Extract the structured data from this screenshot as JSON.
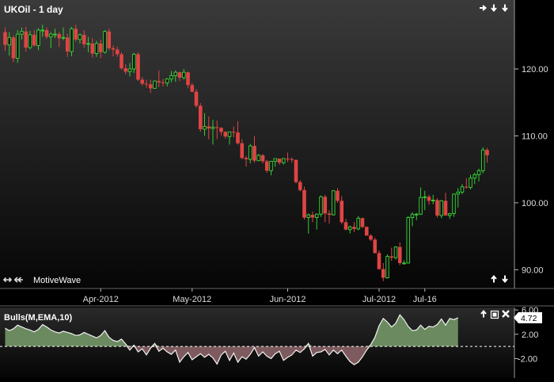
{
  "price_panel": {
    "title": "UKOil - 1 day",
    "watermark": "MotiveWave",
    "nav_top_icons": [
      "arrow-right-icon",
      "arrow-down-icon",
      "arrow-down-icon"
    ],
    "nav_left_icons": [
      "double-arrow-icon",
      "double-arrow-icon"
    ],
    "nav_bottom_icons": [
      "arrow-up-icon",
      "arrow-down-icon"
    ]
  },
  "indicator_panel": {
    "title": "Bulls(M,EMA,10)",
    "current_value_label": "4.72",
    "icons": [
      "arrow-up-icon",
      "maximize-icon",
      "close-icon"
    ]
  },
  "colors": {
    "bull": "#33cc33",
    "bear": "#e04444",
    "axis_text": "#dddddd",
    "background_top": "#3a3a3a",
    "background_bottom": "#050505",
    "fill_positive": "#6b8a60",
    "fill_negative": "#7d5a5e"
  },
  "chart_data": [
    {
      "type": "candlestick",
      "title": "UKOil - 1 day",
      "ylim": [
        87.2,
        130.3
      ],
      "price_ticks": [
        "120.00",
        "110.00",
        "100.00",
        "90.00"
      ],
      "price_tick_values": [
        120,
        110,
        100,
        90
      ],
      "x_ticks": [
        "Apr-2012",
        "May-2012",
        "Jun-2012",
        "Jul-2012",
        "Jul-16"
      ],
      "x_tick_bar_index": [
        23,
        45,
        68,
        90,
        101
      ],
      "grid": false,
      "ohlc": [
        [
          125.5,
          126.2,
          122.7,
          123.6
        ],
        [
          123.6,
          125.5,
          122.0,
          124.7
        ],
        [
          124.7,
          125.0,
          121.0,
          121.6
        ],
        [
          121.6,
          125.8,
          120.9,
          125.2
        ],
        [
          125.2,
          126.2,
          124.4,
          125.6
        ],
        [
          125.6,
          126.3,
          122.6,
          123.2
        ],
        [
          123.2,
          125.7,
          122.9,
          125.1
        ],
        [
          125.1,
          125.8,
          123.4,
          123.5
        ],
        [
          123.5,
          126.1,
          122.8,
          125.8
        ],
        [
          125.8,
          126.6,
          124.8,
          125.8
        ],
        [
          125.8,
          126.2,
          124.5,
          124.8
        ],
        [
          124.8,
          125.5,
          123.1,
          125.2
        ],
        [
          125.2,
          126.0,
          124.6,
          125.2
        ],
        [
          125.2,
          125.5,
          123.3,
          124.6
        ],
        [
          124.6,
          126.2,
          124.3,
          124.7
        ],
        [
          124.7,
          125.3,
          121.8,
          122.6
        ],
        [
          122.6,
          126.3,
          121.9,
          126.0
        ],
        [
          126.0,
          126.6,
          124.1,
          124.4
        ],
        [
          124.4,
          125.3,
          123.8,
          125.1
        ],
        [
          125.1,
          125.8,
          123.2,
          123.7
        ],
        [
          123.7,
          124.8,
          122.5,
          123.8
        ],
        [
          123.8,
          124.6,
          121.7,
          122.3
        ],
        [
          122.3,
          124.2,
          121.8,
          123.8
        ],
        [
          123.8,
          124.4,
          121.6,
          122.5
        ],
        [
          122.5,
          125.8,
          122.3,
          125.6
        ],
        [
          125.6,
          126.0,
          122.8,
          123.1
        ],
        [
          123.1,
          123.5,
          121.9,
          122.9
        ],
        [
          122.9,
          123.3,
          121.8,
          122.2
        ],
        [
          122.2,
          122.5,
          119.9,
          120.1
        ],
        [
          120.1,
          120.7,
          119.2,
          119.6
        ],
        [
          119.6,
          120.9,
          118.9,
          120.0
        ],
        [
          120.0,
          122.4,
          119.4,
          122.2
        ],
        [
          122.2,
          122.5,
          118.2,
          118.4
        ],
        [
          118.4,
          118.8,
          117.5,
          117.8
        ],
        [
          117.8,
          118.4,
          117.2,
          117.7
        ],
        [
          117.7,
          118.4,
          116.4,
          117.1
        ],
        [
          117.1,
          118.3,
          117.1,
          118.2
        ],
        [
          118.2,
          119.8,
          117.3,
          118.0
        ],
        [
          118.0,
          118.5,
          117.4,
          117.9
        ],
        [
          117.9,
          118.6,
          117.4,
          118.5
        ],
        [
          118.5,
          119.7,
          118.0,
          119.0
        ],
        [
          119.0,
          119.8,
          118.1,
          119.5
        ],
        [
          119.5,
          119.6,
          118.2,
          118.7
        ],
        [
          118.7,
          120.0,
          118.4,
          119.5
        ],
        [
          119.5,
          119.6,
          117.1,
          117.6
        ],
        [
          117.6,
          117.9,
          116.5,
          116.6
        ],
        [
          116.6,
          117.0,
          114.2,
          114.5
        ],
        [
          114.5,
          114.9,
          110.6,
          111.0
        ],
        [
          111.0,
          113.4,
          110.0,
          111.4
        ],
        [
          111.4,
          112.9,
          109.5,
          111.1
        ],
        [
          111.1,
          112.4,
          108.7,
          111.3
        ],
        [
          111.3,
          112.3,
          109.5,
          111.2
        ],
        [
          111.2,
          111.3,
          110.1,
          110.6
        ],
        [
          110.6,
          110.7,
          109.6,
          109.9
        ],
        [
          109.9,
          110.4,
          108.7,
          110.6
        ],
        [
          110.6,
          111.4,
          109.8,
          110.5
        ],
        [
          110.5,
          112.2,
          108.7,
          108.9
        ],
        [
          108.9,
          109.5,
          106.5,
          106.7
        ],
        [
          106.7,
          107.0,
          105.4,
          106.5
        ],
        [
          106.5,
          108.8,
          105.9,
          108.5
        ],
        [
          108.5,
          110.0,
          106.0,
          106.3
        ],
        [
          106.3,
          107.3,
          106.2,
          107.1
        ],
        [
          107.1,
          107.3,
          105.9,
          106.2
        ],
        [
          106.2,
          106.4,
          104.5,
          104.8
        ],
        [
          104.8,
          106.2,
          104.1,
          106.2
        ],
        [
          106.2,
          106.6,
          105.4,
          106.6
        ],
        [
          106.6,
          106.6,
          105.7,
          106.0
        ],
        [
          106.0,
          106.7,
          105.7,
          106.6
        ],
        [
          106.6,
          107.5,
          106.1,
          106.5
        ],
        [
          106.5,
          106.8,
          106.0,
          106.4
        ],
        [
          106.4,
          106.5,
          102.9,
          103.1
        ],
        [
          103.1,
          103.4,
          101.7,
          101.9
        ],
        [
          101.9,
          102.4,
          97.5,
          97.8
        ],
        [
          97.8,
          98.4,
          95.4,
          98.2
        ],
        [
          98.2,
          98.7,
          97.1,
          97.8
        ],
        [
          97.8,
          98.4,
          96.0,
          98.3
        ],
        [
          98.3,
          101.1,
          97.9,
          100.9
        ],
        [
          100.9,
          101.2,
          97.1,
          98.4
        ],
        [
          98.4,
          98.9,
          96.9,
          98.2
        ],
        [
          98.2,
          101.9,
          98.1,
          101.8
        ],
        [
          101.8,
          102.2,
          100.0,
          100.3
        ],
        [
          100.3,
          101.0,
          96.8,
          97.1
        ],
        [
          97.1,
          97.6,
          95.9,
          96.0
        ],
        [
          96.0,
          96.6,
          95.4,
          96.4
        ],
        [
          96.4,
          97.1,
          95.6,
          96.1
        ],
        [
          96.1,
          98.0,
          95.9,
          97.7
        ],
        [
          97.7,
          97.8,
          96.2,
          96.4
        ],
        [
          96.4,
          96.5,
          95.1,
          95.1
        ],
        [
          95.1,
          95.3,
          94.3,
          94.5
        ],
        [
          94.5,
          94.8,
          92.4,
          92.5
        ],
        [
          92.5,
          92.9,
          90.0,
          90.1
        ],
        [
          90.1,
          91.0,
          88.3,
          88.8
        ],
        [
          88.8,
          92.3,
          88.7,
          92.0
        ],
        [
          92.0,
          93.3,
          91.3,
          91.8
        ],
        [
          91.8,
          93.5,
          91.5,
          93.4
        ],
        [
          93.4,
          94.1,
          90.7,
          91.0
        ],
        [
          91.0,
          91.4,
          90.8,
          91.0
        ],
        [
          91.0,
          98.0,
          91.0,
          97.8
        ],
        [
          97.8,
          98.6,
          96.5,
          98.3
        ],
        [
          98.3,
          98.5,
          97.4,
          98.3
        ],
        [
          98.3,
          102.3,
          98.2,
          100.8
        ],
        [
          100.8,
          101.8,
          98.9,
          100.9
        ],
        [
          100.9,
          101.2,
          99.7,
          100.3
        ],
        [
          100.3,
          101.2,
          99.8,
          100.4
        ],
        [
          100.4,
          100.7,
          97.8,
          98.1
        ],
        [
          98.1,
          100.4,
          97.7,
          100.3
        ],
        [
          100.3,
          101.5,
          98.2,
          98.1
        ],
        [
          98.1,
          98.4,
          97.6,
          98.4
        ],
        [
          98.4,
          101.4,
          97.9,
          101.3
        ],
        [
          101.3,
          102.2,
          99.3,
          101.6
        ],
        [
          101.6,
          102.8,
          101.3,
          102.4
        ],
        [
          102.4,
          103.7,
          102.1,
          102.3
        ],
        [
          102.3,
          104.2,
          102.0,
          103.7
        ],
        [
          103.7,
          104.5,
          102.8,
          104.2
        ],
        [
          104.2,
          105.1,
          103.2,
          104.8
        ],
        [
          104.8,
          108.3,
          104.4,
          107.9
        ],
        [
          107.9,
          108.2,
          106.0,
          107.1
        ]
      ]
    },
    {
      "type": "area",
      "title": "Bulls(M,EMA,10)",
      "ylim": [
        -5.2,
        6.4
      ],
      "y_ticks": [
        "6.00",
        "2.00",
        "-2.00"
      ],
      "y_tick_values": [
        6,
        2,
        -2
      ],
      "zero_line": 0,
      "last_value": 4.72,
      "values": [
        3.0,
        2.6,
        2.9,
        3.5,
        3.2,
        2.9,
        2.7,
        2.4,
        2.8,
        3.6,
        3.2,
        2.7,
        2.4,
        2.2,
        2.5,
        2.3,
        2.1,
        1.8,
        1.9,
        2.3,
        2.0,
        1.7,
        1.4,
        1.8,
        2.6,
        1.5,
        1.0,
        0.8,
        1.2,
        0.4,
        -0.6,
        0.2,
        -0.9,
        -0.4,
        -1.4,
        -0.3,
        0.5,
        -0.8,
        -0.3,
        -0.9,
        -1.3,
        -0.6,
        -2.6,
        -1.7,
        -1.0,
        -2.2,
        -1.7,
        -1.2,
        -1.8,
        -1.3,
        -1.9,
        -2.9,
        -1.4,
        -0.8,
        -2.3,
        -1.1,
        -2.6,
        -1.7,
        -2.1,
        -1.3,
        -0.2,
        -1.6,
        -0.9,
        -1.6,
        -2.0,
        -1.2,
        -0.8,
        -2.3,
        -1.8,
        -1.4,
        -0.6,
        -1.0,
        -0.4,
        0.5,
        -1.6,
        -1.0,
        -0.9,
        -0.5,
        -1.4,
        -0.6,
        -1.2,
        -0.6,
        -1.6,
        -2.5,
        -3.0,
        -2.6,
        -1.7,
        -0.6,
        0.3,
        1.5,
        3.4,
        4.6,
        4.0,
        3.2,
        3.8,
        5.2,
        4.4,
        3.3,
        2.6,
        2.7,
        3.5,
        2.8,
        3.3,
        3.2,
        3.6,
        4.5,
        3.5,
        4.6,
        4.4,
        4.72
      ]
    }
  ]
}
